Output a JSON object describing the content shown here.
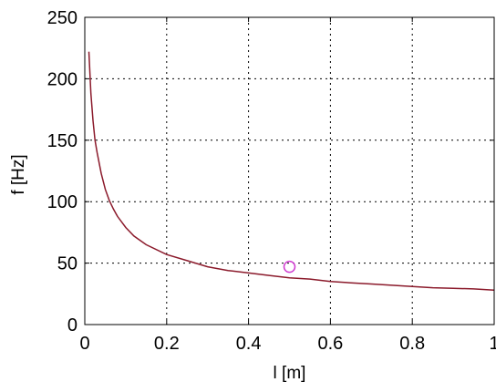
{
  "chart_data": {
    "type": "line",
    "title": "",
    "xlabel": "l [m]",
    "ylabel": "f [Hz]",
    "xlim": [
      0,
      1
    ],
    "ylim": [
      0,
      250
    ],
    "xticks": [
      0,
      0.2,
      0.4,
      0.6,
      0.8,
      1
    ],
    "xtick_labels": [
      "0",
      "0.2",
      "0.4",
      "0.6",
      "0.8",
      "1"
    ],
    "yticks": [
      0,
      50,
      100,
      150,
      200,
      250
    ],
    "ytick_labels": [
      "0",
      "50",
      "100",
      "150",
      "200",
      "250"
    ],
    "grid": true,
    "grid_style": "dotted",
    "legend": "none",
    "series": [
      {
        "color": "#8b1a2b",
        "x": [
          0.01,
          0.015,
          0.02,
          0.025,
          0.03,
          0.04,
          0.05,
          0.06,
          0.07,
          0.08,
          0.1,
          0.12,
          0.15,
          0.2,
          0.25,
          0.3,
          0.35,
          0.4,
          0.45,
          0.5,
          0.55,
          0.6,
          0.65,
          0.7,
          0.75,
          0.8,
          0.85,
          0.9,
          0.95,
          1.0
        ],
        "y": [
          222,
          188,
          166,
          150,
          140,
          123,
          110,
          101,
          94,
          88,
          79,
          72,
          65,
          57,
          52,
          47,
          44,
          42,
          40,
          38,
          37,
          35,
          34,
          33,
          32,
          31,
          30,
          29.5,
          29,
          28
        ]
      }
    ],
    "markers": [
      {
        "x": 0.5,
        "y": 47,
        "shape": "circle",
        "color": "#d03cd0"
      }
    ]
  }
}
